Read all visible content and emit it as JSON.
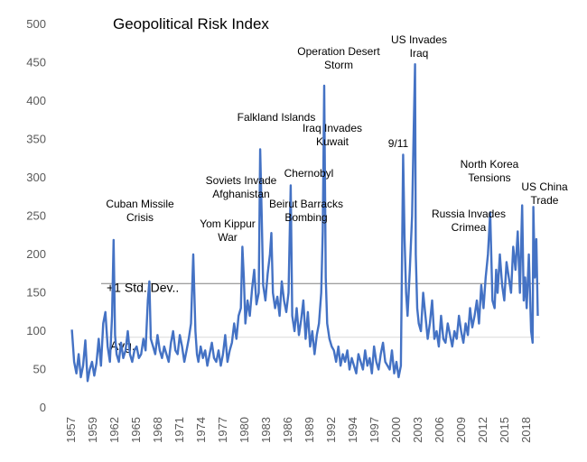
{
  "chart_data": {
    "type": "line",
    "title": "Geopolitical Risk Index",
    "xlabel": "",
    "ylabel": "",
    "ylim": [
      0,
      500
    ],
    "y_ticks": [
      0,
      50,
      100,
      150,
      200,
      250,
      300,
      350,
      400,
      450,
      500
    ],
    "x_ticks": [
      "1957",
      "1959",
      "1962",
      "1965",
      "1968",
      "1971",
      "1974",
      "1977",
      "1980",
      "1983",
      "1986",
      "1989",
      "1992",
      "1994",
      "1997",
      "2000",
      "2003",
      "2006",
      "2009",
      "2012",
      "2015",
      "2018"
    ],
    "grid": false,
    "colors": {
      "series": "#4472c4",
      "reference": "#808080",
      "avg": "#d9d9d9"
    },
    "reference_lines": [
      {
        "label": "+1 Std. Dev..",
        "value": 162
      },
      {
        "label": "Avg.",
        "value": 92
      }
    ],
    "annotations": [
      {
        "text": [
          "Cuban Missile",
          "Crisis"
        ],
        "x": 1962.8,
        "y": 219
      },
      {
        "text": [
          "Yom Kippur",
          "War"
        ],
        "x": 1973.8,
        "y": 200
      },
      {
        "text": [
          "Soviets Invade",
          "Afghanistan"
        ],
        "x": 1980.0,
        "y": 210
      },
      {
        "text": [
          "Falkland Islands"
        ],
        "x": 1982.3,
        "y": 337
      },
      {
        "text": [
          "Chernobyl"
        ],
        "x": 1986.4,
        "y": 290
      },
      {
        "text": [
          "Beirut Barracks",
          "Bombing"
        ],
        "x": 1983.8,
        "y": 228
      },
      {
        "text": [
          "Operation Desert",
          "Storm"
        ],
        "x": 1990.9,
        "y": 420
      },
      {
        "text": [
          "Iraq Invades",
          "Kuwait"
        ],
        "x": 1990.6,
        "y": 360
      },
      {
        "text": [
          "9/11"
        ],
        "x": 2001.8,
        "y": 328
      },
      {
        "text": [
          "US Invades",
          "Iraq"
        ],
        "x": 2003.2,
        "y": 448
      },
      {
        "text": [
          "Russia Invades",
          "Crimea"
        ],
        "x": 2014.2,
        "y": 255
      },
      {
        "text": [
          "North Korea",
          "Tensions"
        ],
        "x": 2017.5,
        "y": 263
      },
      {
        "text": [
          "US China",
          "Trade"
        ],
        "x": 2019.0,
        "y": 261
      }
    ],
    "series": [
      {
        "x": [
          1957.0,
          1957.3,
          1957.6,
          1957.9,
          1958.2,
          1958.5,
          1958.8,
          1959.1,
          1959.4,
          1959.7,
          1960.0,
          1960.3,
          1960.6,
          1960.9,
          1961.2,
          1961.5,
          1961.8,
          1962.1,
          1962.4,
          1962.6,
          1962.8,
          1963.0,
          1963.3,
          1963.6,
          1963.9,
          1964.2,
          1964.5,
          1964.8,
          1965.1,
          1965.4,
          1965.7,
          1966.0,
          1966.3,
          1966.6,
          1966.9,
          1967.2,
          1967.4,
          1967.6,
          1967.9,
          1968.2,
          1968.5,
          1968.8,
          1969.1,
          1969.4,
          1969.7,
          1970.0,
          1970.3,
          1970.6,
          1970.9,
          1971.2,
          1971.5,
          1971.8,
          1972.1,
          1972.4,
          1972.7,
          1973.0,
          1973.3,
          1973.6,
          1973.8,
          1974.0,
          1974.3,
          1974.6,
          1974.9,
          1975.2,
          1975.5,
          1975.8,
          1976.1,
          1976.4,
          1976.7,
          1977.0,
          1977.3,
          1977.6,
          1977.9,
          1978.2,
          1978.5,
          1978.8,
          1979.1,
          1979.4,
          1979.7,
          1979.9,
          1980.1,
          1980.3,
          1980.6,
          1980.9,
          1981.2,
          1981.5,
          1981.8,
          1982.1,
          1982.3,
          1982.5,
          1982.7,
          1983.0,
          1983.3,
          1983.6,
          1983.8,
          1984.0,
          1984.3,
          1984.6,
          1984.9,
          1985.2,
          1985.5,
          1985.8,
          1986.1,
          1986.4,
          1986.6,
          1986.9,
          1987.2,
          1987.5,
          1987.8,
          1988.1,
          1988.4,
          1988.7,
          1989.0,
          1989.3,
          1989.6,
          1989.9,
          1990.2,
          1990.5,
          1990.7,
          1990.9,
          1991.1,
          1991.3,
          1991.6,
          1991.9,
          1992.2,
          1992.5,
          1992.8,
          1993.1,
          1993.4,
          1993.7,
          1994.0,
          1994.3,
          1994.6,
          1994.9,
          1995.2,
          1995.5,
          1995.8,
          1996.1,
          1996.4,
          1996.7,
          1997.0,
          1997.3,
          1997.6,
          1997.9,
          1998.2,
          1998.5,
          1998.8,
          1999.1,
          1999.4,
          1999.7,
          2000.0,
          2000.3,
          2000.6,
          2000.9,
          2001.2,
          2001.5,
          2001.7,
          2001.9,
          2002.1,
          2002.4,
          2002.7,
          2002.9,
          2003.1,
          2003.2,
          2003.4,
          2003.6,
          2003.9,
          2004.2,
          2004.5,
          2004.8,
          2005.1,
          2005.4,
          2005.7,
          2006.0,
          2006.3,
          2006.6,
          2006.9,
          2007.2,
          2007.5,
          2007.8,
          2008.1,
          2008.4,
          2008.7,
          2009.0,
          2009.3,
          2009.6,
          2009.9,
          2010.2,
          2010.5,
          2010.8,
          2011.1,
          2011.4,
          2011.7,
          2012.0,
          2012.3,
          2012.6,
          2012.9,
          2013.2,
          2013.5,
          2013.8,
          2014.0,
          2014.2,
          2014.5,
          2014.8,
          2015.1,
          2015.4,
          2015.7,
          2016.0,
          2016.3,
          2016.6,
          2016.9,
          2017.2,
          2017.5,
          2017.7,
          2017.9,
          2018.1,
          2018.4,
          2018.7,
          2018.9,
          2019.0,
          2019.2,
          2019.4,
          2019.6
        ],
        "y": [
          102,
          60,
          45,
          70,
          40,
          55,
          88,
          35,
          50,
          60,
          42,
          58,
          90,
          55,
          110,
          125,
          80,
          60,
          120,
          219,
          95,
          70,
          60,
          85,
          65,
          75,
          100,
          70,
          60,
          75,
          80,
          65,
          70,
          90,
          75,
          140,
          165,
          90,
          80,
          70,
          95,
          75,
          65,
          80,
          70,
          60,
          85,
          100,
          75,
          70,
          95,
          80,
          60,
          75,
          90,
          110,
          200,
          100,
          70,
          60,
          80,
          65,
          75,
          55,
          70,
          85,
          65,
          60,
          75,
          55,
          70,
          95,
          60,
          75,
          85,
          110,
          90,
          120,
          130,
          210,
          170,
          110,
          140,
          120,
          155,
          180,
          135,
          150,
          337,
          250,
          160,
          140,
          175,
          200,
          228,
          150,
          130,
          145,
          120,
          165,
          140,
          125,
          150,
          290,
          120,
          100,
          130,
          95,
          115,
          140,
          90,
          125,
          80,
          100,
          70,
          95,
          110,
          150,
          230,
          420,
          170,
          110,
          90,
          80,
          75,
          60,
          80,
          55,
          70,
          60,
          75,
          50,
          65,
          55,
          45,
          70,
          60,
          50,
          75,
          55,
          65,
          45,
          80,
          60,
          50,
          70,
          85,
          60,
          55,
          50,
          75,
          45,
          60,
          40,
          55,
          330,
          220,
          150,
          120,
          180,
          250,
          350,
          448,
          200,
          130,
          110,
          100,
          150,
          120,
          90,
          110,
          140,
          90,
          100,
          80,
          120,
          90,
          85,
          110,
          95,
          80,
          100,
          90,
          120,
          100,
          85,
          110,
          95,
          130,
          105,
          120,
          140,
          110,
          160,
          130,
          170,
          200,
          255,
          140,
          130,
          180,
          150,
          200,
          160,
          140,
          190,
          170,
          150,
          210,
          180,
          230,
          150,
          264,
          140,
          170,
          130,
          200,
          100,
          85,
          262,
          170,
          220,
          120
        ]
      }
    ]
  }
}
